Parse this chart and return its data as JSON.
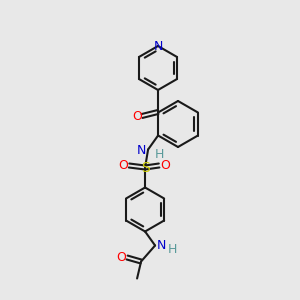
{
  "bg_color": "#e8e8e8",
  "bond_color": "#1a1a1a",
  "colors": {
    "N": "#0000cc",
    "O": "#ff0000",
    "S": "#cccc00",
    "H": "#5a9a9a"
  },
  "lw": 1.5,
  "lw2": 0.9
}
